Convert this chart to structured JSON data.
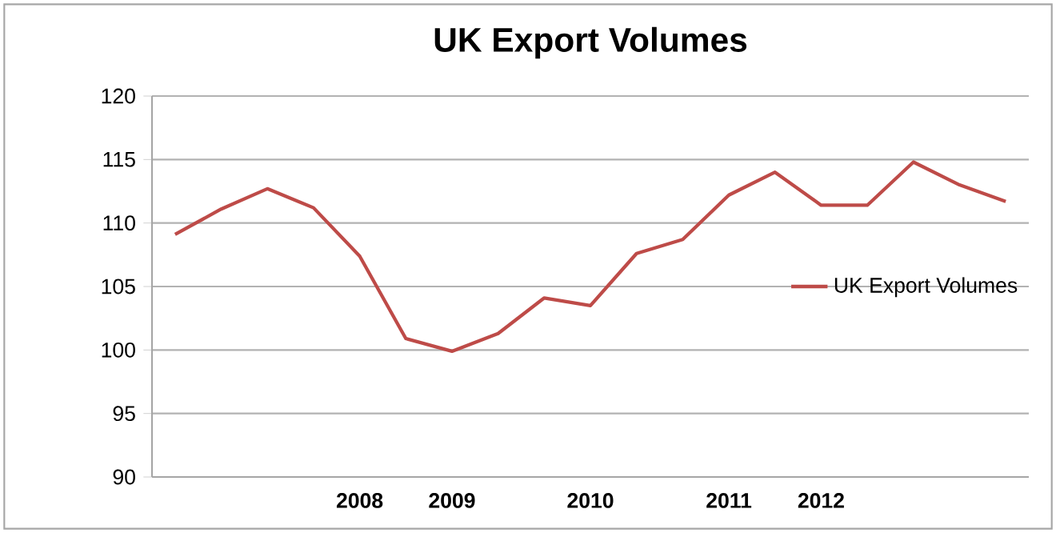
{
  "chart_data": {
    "type": "line",
    "title": "UK Export Volumes",
    "categories": [
      null,
      null,
      null,
      null,
      "2008",
      null,
      "2009",
      null,
      null,
      "2010",
      null,
      null,
      "2011",
      null,
      "2012",
      null,
      null,
      null,
      null
    ],
    "series": [
      {
        "name": "UK Export Volumes",
        "color": "#be4b48",
        "values": [
          109.1,
          111.1,
          112.7,
          111.2,
          107.4,
          100.9,
          99.9,
          101.3,
          104.1,
          103.5,
          107.6,
          108.7,
          112.2,
          114.0,
          111.4,
          111.4,
          114.8,
          113.0,
          111.7
        ]
      }
    ],
    "ylim": [
      90,
      120
    ],
    "yticks": [
      90,
      95,
      100,
      105,
      110,
      115,
      120
    ],
    "grid": "y",
    "legend": "right",
    "marker": "none",
    "line_style": "solid"
  }
}
